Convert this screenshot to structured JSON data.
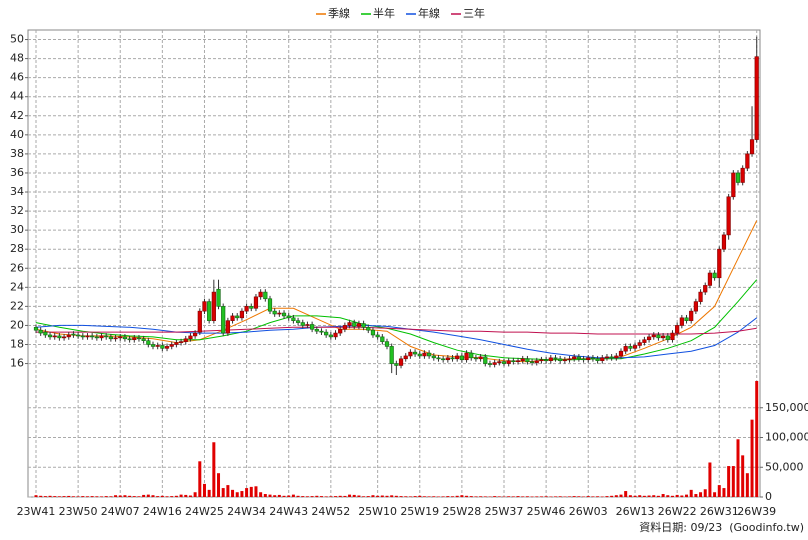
{
  "chart_data": {
    "type": "candlestick",
    "legend_position": "top",
    "grid": true,
    "up_color": "#d80000",
    "down_color": "#22c022",
    "volume_color": "#e00000",
    "categories": [
      "23W41",
      null,
      null,
      null,
      null,
      null,
      null,
      null,
      null,
      "23W50",
      null,
      null,
      null,
      null,
      null,
      null,
      null,
      null,
      "24W07",
      null,
      null,
      null,
      null,
      null,
      null,
      null,
      null,
      "24W16",
      null,
      null,
      null,
      null,
      null,
      null,
      null,
      null,
      "24W25",
      null,
      null,
      null,
      null,
      null,
      null,
      null,
      null,
      "24W34",
      null,
      null,
      null,
      null,
      null,
      null,
      null,
      null,
      "24W43",
      null,
      null,
      null,
      null,
      null,
      null,
      null,
      null,
      "24W52",
      null,
      null,
      null,
      null,
      null,
      null,
      null,
      null,
      null,
      "25W10",
      null,
      null,
      null,
      null,
      null,
      null,
      null,
      null,
      "25W19",
      null,
      null,
      null,
      null,
      null,
      null,
      null,
      null,
      "25W28",
      null,
      null,
      null,
      null,
      null,
      null,
      null,
      null,
      "25W37",
      null,
      null,
      null,
      null,
      null,
      null,
      null,
      null,
      "25W46",
      null,
      null,
      null,
      null,
      null,
      null,
      null,
      null,
      "26W03",
      null,
      null,
      null,
      null,
      null,
      null,
      null,
      null,
      null,
      "26W13",
      null,
      null,
      null,
      null,
      null,
      null,
      null,
      null,
      "26W22",
      null,
      null,
      null,
      null,
      null,
      null,
      null,
      null,
      "26W31",
      null,
      null,
      null,
      null,
      null,
      null,
      null,
      "26W39"
    ],
    "open": [
      19.8,
      19.5,
      19.3,
      19.0,
      18.8,
      18.9,
      18.7,
      18.8,
      19.1,
      19.0,
      18.9,
      18.8,
      18.9,
      18.8,
      18.7,
      18.9,
      18.8,
      18.6,
      18.7,
      18.8,
      18.6,
      18.5,
      18.7,
      18.6,
      18.4,
      18.0,
      17.8,
      17.9,
      17.6,
      17.8,
      18.0,
      18.2,
      18.3,
      18.6,
      18.9,
      19.3,
      21.5,
      22.5,
      20.5,
      23.8,
      22.0,
      19.2,
      20.5,
      21.0,
      20.8,
      21.5,
      22.0,
      21.8,
      23.0,
      23.5,
      22.8,
      21.5,
      21.2,
      21.3,
      21.0,
      20.8,
      20.5,
      20.3,
      20.0,
      20.1,
      19.6,
      19.4,
      19.3,
      19.0,
      18.8,
      19.2,
      19.6,
      20.0,
      20.3,
      19.9,
      20.2,
      19.8,
      19.5,
      19.0,
      18.8,
      18.3,
      17.8,
      16.0,
      15.8,
      16.5,
      16.8,
      17.2,
      17.0,
      16.8,
      17.1,
      16.8,
      16.6,
      16.5,
      16.4,
      16.6,
      16.5,
      16.8,
      16.4,
      17.1,
      16.6,
      16.5,
      16.7,
      16.0,
      15.9,
      16.1,
      16.2,
      16.0,
      16.3,
      16.2,
      16.3,
      16.5,
      16.2,
      16.1,
      16.3,
      16.4,
      16.3,
      16.6,
      16.5,
      16.3,
      16.4,
      16.5,
      16.7,
      16.5,
      16.4,
      16.6,
      16.5,
      16.3,
      16.6,
      16.7,
      16.6,
      16.8,
      17.3,
      17.8,
      17.6,
      17.9,
      18.2,
      18.5,
      18.8,
      19.0,
      18.7,
      18.9,
      18.5,
      19.2,
      20.0,
      20.8,
      20.5,
      21.5,
      22.5,
      23.5,
      24.2,
      25.5,
      25.0,
      28.0,
      29.5,
      33.5,
      36.0,
      35.0,
      36.5,
      38.0,
      39.5
    ],
    "high": [
      20.1,
      19.8,
      19.6,
      19.3,
      19.2,
      19.2,
      19.1,
      19.3,
      19.4,
      19.3,
      19.2,
      19.2,
      19.2,
      19.1,
      19.2,
      19.2,
      19.1,
      19.0,
      19.1,
      19.1,
      18.9,
      19.0,
      19.0,
      18.9,
      18.7,
      18.3,
      18.2,
      18.2,
      18.1,
      18.3,
      18.5,
      18.6,
      18.9,
      19.2,
      19.5,
      21.8,
      22.8,
      22.8,
      24.8,
      24.8,
      22.3,
      20.8,
      21.3,
      21.3,
      21.8,
      22.3,
      22.3,
      23.3,
      23.8,
      23.8,
      23.1,
      21.8,
      21.6,
      21.6,
      21.3,
      21.1,
      20.8,
      20.6,
      20.4,
      20.4,
      19.9,
      19.7,
      19.6,
      19.3,
      19.5,
      19.9,
      20.3,
      20.6,
      20.6,
      20.5,
      20.5,
      20.1,
      19.8,
      19.3,
      19.1,
      18.6,
      18.1,
      16.3,
      16.8,
      17.1,
      17.5,
      17.5,
      17.3,
      17.4,
      17.4,
      17.1,
      16.9,
      16.8,
      16.9,
      16.9,
      17.1,
      17.1,
      17.4,
      17.4,
      16.9,
      17.0,
      17.0,
      16.3,
      16.4,
      16.5,
      16.5,
      16.6,
      16.6,
      16.6,
      16.8,
      16.8,
      16.5,
      16.6,
      16.7,
      16.7,
      16.9,
      16.9,
      16.8,
      16.7,
      16.8,
      17.0,
      17.0,
      16.8,
      16.9,
      16.9,
      16.8,
      16.9,
      17.0,
      17.0,
      17.1,
      17.6,
      18.1,
      18.1,
      18.2,
      18.5,
      18.8,
      19.1,
      19.3,
      19.3,
      19.2,
      19.2,
      19.5,
      20.3,
      21.1,
      21.1,
      21.8,
      22.8,
      23.8,
      24.5,
      25.8,
      25.8,
      28.3,
      29.8,
      33.8,
      36.3,
      36.3,
      36.8,
      38.3,
      43.0,
      50.3
    ],
    "low": [
      19.2,
      18.9,
      18.7,
      18.5,
      18.5,
      18.4,
      18.4,
      18.5,
      18.7,
      18.6,
      18.5,
      18.5,
      18.5,
      18.4,
      18.4,
      18.5,
      18.3,
      18.3,
      18.4,
      18.3,
      18.2,
      18.2,
      18.3,
      18.1,
      17.7,
      17.5,
      17.5,
      17.3,
      17.3,
      17.5,
      17.7,
      17.9,
      18.0,
      18.3,
      18.6,
      19.0,
      21.2,
      20.2,
      20.2,
      21.7,
      18.9,
      18.9,
      20.2,
      20.5,
      20.5,
      21.2,
      21.5,
      21.5,
      22.7,
      22.5,
      21.2,
      20.9,
      20.9,
      20.7,
      20.5,
      20.2,
      20.0,
      19.7,
      19.7,
      19.3,
      19.1,
      19.0,
      18.7,
      18.5,
      18.5,
      18.9,
      19.3,
      19.7,
      19.6,
      19.6,
      19.5,
      19.2,
      18.7,
      18.5,
      18.0,
      17.5,
      15.0,
      14.8,
      15.5,
      16.2,
      16.5,
      16.7,
      16.5,
      16.5,
      16.5,
      16.3,
      16.2,
      16.1,
      16.1,
      16.2,
      16.2,
      16.1,
      16.1,
      16.3,
      16.2,
      16.2,
      15.7,
      15.6,
      15.6,
      15.8,
      15.7,
      15.7,
      15.9,
      15.9,
      16.0,
      15.9,
      15.8,
      15.8,
      16.0,
      16.0,
      16.0,
      16.2,
      16.0,
      16.0,
      16.1,
      16.2,
      16.2,
      16.1,
      16.1,
      16.2,
      16.0,
      16.0,
      16.3,
      16.3,
      16.3,
      16.5,
      17.0,
      17.3,
      17.3,
      17.6,
      17.9,
      18.2,
      18.5,
      18.4,
      18.4,
      18.2,
      18.2,
      18.9,
      19.7,
      20.2,
      20.2,
      21.2,
      22.2,
      23.2,
      23.9,
      24.7,
      24.0,
      27.7,
      29.0,
      33.2,
      34.7,
      34.7,
      36.2,
      37.7,
      39.2
    ],
    "close": [
      19.5,
      19.2,
      19.0,
      18.8,
      18.9,
      18.7,
      18.8,
      19.0,
      19.0,
      18.9,
      18.8,
      18.9,
      18.8,
      18.7,
      18.9,
      18.8,
      18.6,
      18.7,
      18.8,
      18.6,
      18.5,
      18.7,
      18.6,
      18.4,
      18.0,
      17.8,
      17.9,
      17.6,
      17.8,
      18.0,
      18.2,
      18.3,
      18.6,
      18.9,
      19.2,
      21.5,
      22.5,
      20.5,
      23.5,
      22.0,
      19.2,
      20.5,
      21.0,
      20.8,
      21.5,
      22.0,
      21.8,
      23.0,
      23.5,
      22.8,
      21.5,
      21.2,
      21.3,
      21.0,
      20.8,
      20.5,
      20.3,
      20.0,
      20.1,
      19.6,
      19.4,
      19.3,
      19.0,
      18.8,
      19.2,
      19.6,
      20.0,
      20.3,
      19.9,
      20.2,
      19.8,
      19.5,
      19.0,
      18.8,
      18.3,
      17.8,
      16.0,
      15.8,
      16.5,
      16.8,
      17.2,
      17.0,
      16.8,
      17.1,
      16.8,
      16.6,
      16.5,
      16.4,
      16.6,
      16.5,
      16.8,
      16.4,
      17.1,
      16.6,
      16.5,
      16.7,
      16.0,
      15.9,
      16.1,
      16.2,
      16.0,
      16.3,
      16.2,
      16.3,
      16.5,
      16.2,
      16.1,
      16.3,
      16.4,
      16.3,
      16.6,
      16.5,
      16.3,
      16.4,
      16.5,
      16.7,
      16.5,
      16.4,
      16.6,
      16.5,
      16.3,
      16.6,
      16.7,
      16.6,
      16.8,
      17.3,
      17.8,
      17.6,
      17.9,
      18.2,
      18.5,
      18.8,
      19.0,
      18.7,
      18.9,
      18.5,
      19.2,
      20.0,
      20.8,
      20.5,
      21.5,
      22.5,
      23.5,
      24.2,
      25.5,
      25.0,
      28.0,
      29.5,
      33.5,
      36.0,
      35.0,
      36.5,
      38.0,
      39.5,
      48.2
    ],
    "volume": [
      3000,
      2000,
      1500,
      2000,
      1500,
      1200,
      1500,
      1800,
      1200,
      1000,
      1500,
      1200,
      1500,
      1200,
      1000,
      1500,
      1200,
      3000,
      2500,
      3000,
      2000,
      1500,
      1200,
      3500,
      4000,
      3000,
      1500,
      2000,
      1200,
      1500,
      2000,
      4000,
      3500,
      2500,
      8000,
      60000,
      22000,
      12000,
      92000,
      40000,
      15000,
      20000,
      12000,
      8000,
      10000,
      15000,
      17000,
      18000,
      8000,
      5000,
      4000,
      3000,
      3500,
      2000,
      2500,
      4000,
      2000,
      1500,
      1200,
      1500,
      2000,
      1500,
      1000,
      1200,
      1500,
      2000,
      1800,
      4000,
      3500,
      2500,
      1200,
      1500,
      3000,
      2000,
      2500,
      2000,
      2800,
      2000,
      1500,
      1200,
      1000,
      1500,
      2000,
      1200,
      1000,
      1200,
      800,
      1000,
      1500,
      1200,
      2000,
      3000,
      2000,
      1500,
      1000,
      1200,
      1000,
      800,
      1500,
      1000,
      800,
      1200,
      1000,
      1500,
      1000,
      1200,
      800,
      1000,
      1000,
      1200,
      800,
      1000,
      1200,
      800,
      1000,
      1500,
      1200,
      800,
      1500,
      1000,
      1200,
      800,
      1500,
      2000,
      3000,
      4000,
      10000,
      3000,
      2000,
      3000,
      2000,
      2500,
      3000,
      2000,
      5000,
      3000,
      2000,
      3500,
      2500,
      4000,
      12000,
      5000,
      8000,
      13000,
      58000,
      8000,
      20000,
      15000,
      52000,
      52000,
      97000,
      70000,
      40000,
      130000,
      195000
    ],
    "series": [
      {
        "name": "季線",
        "color": "#ee7700",
        "x": [
          0,
          5,
          10,
          15,
          20,
          25,
          30,
          35,
          40,
          45,
          50,
          55,
          60,
          65,
          70,
          75,
          80,
          85,
          90,
          95,
          100,
          105,
          110,
          115,
          120,
          125,
          130,
          135,
          140,
          145,
          150,
          154
        ],
        "values": [
          19.6,
          19.1,
          18.9,
          18.9,
          18.8,
          18.6,
          18.2,
          18.5,
          19.5,
          20.6,
          21.8,
          21.8,
          20.7,
          19.6,
          19.6,
          19.4,
          17.8,
          16.9,
          16.7,
          16.6,
          16.3,
          16.2,
          16.4,
          16.5,
          16.5,
          16.7,
          17.6,
          18.6,
          19.8,
          22.0,
          27.0,
          31.0
        ]
      },
      {
        "name": "半年",
        "color": "#00c000",
        "x": [
          0,
          5,
          10,
          15,
          20,
          25,
          30,
          35,
          40,
          45,
          50,
          55,
          60,
          65,
          70,
          75,
          80,
          85,
          90,
          95,
          100,
          105,
          110,
          115,
          120,
          125,
          130,
          135,
          140,
          145,
          150,
          154
        ],
        "values": [
          20.3,
          19.8,
          19.4,
          19.1,
          18.9,
          18.8,
          18.5,
          18.5,
          18.9,
          19.4,
          20.3,
          21.0,
          21.0,
          20.8,
          20.1,
          19.7,
          19.1,
          18.2,
          17.4,
          16.9,
          16.6,
          16.5,
          16.4,
          16.4,
          16.5,
          16.5,
          17.0,
          17.6,
          18.4,
          19.8,
          22.5,
          24.8
        ]
      },
      {
        "name": "年線",
        "color": "#1050e0",
        "x": [
          0,
          5,
          10,
          15,
          20,
          25,
          30,
          35,
          40,
          45,
          50,
          55,
          60,
          65,
          70,
          75,
          80,
          85,
          90,
          95,
          100,
          105,
          110,
          115,
          120,
          125,
          130,
          135,
          140,
          145,
          150,
          154
        ],
        "values": [
          19.8,
          20.0,
          20.0,
          19.9,
          19.8,
          19.6,
          19.3,
          19.2,
          19.2,
          19.3,
          19.5,
          19.6,
          19.8,
          19.9,
          20.0,
          19.9,
          19.6,
          19.3,
          18.9,
          18.5,
          18.0,
          17.5,
          17.1,
          16.8,
          16.6,
          16.6,
          16.7,
          17.0,
          17.3,
          17.9,
          19.3,
          20.8
        ]
      },
      {
        "name": "三年",
        "color": "#c0104f",
        "x": [
          0,
          5,
          10,
          15,
          20,
          25,
          30,
          35,
          40,
          45,
          50,
          55,
          60,
          65,
          70,
          75,
          80,
          85,
          90,
          95,
          100,
          105,
          110,
          115,
          120,
          125,
          130,
          135,
          140,
          145,
          150,
          154
        ],
        "values": [
          19.3,
          19.3,
          19.3,
          19.3,
          19.3,
          19.3,
          19.3,
          19.4,
          19.5,
          19.6,
          19.7,
          19.8,
          19.8,
          19.8,
          19.8,
          19.7,
          19.6,
          19.5,
          19.4,
          19.4,
          19.3,
          19.3,
          19.2,
          19.2,
          19.1,
          19.1,
          19.1,
          19.1,
          19.1,
          19.2,
          19.4,
          19.7
        ]
      }
    ],
    "ylim": [
      14.8,
      51.0
    ],
    "yticks": [
      16,
      18,
      20,
      22,
      24,
      26,
      28,
      30,
      32,
      34,
      36,
      38,
      40,
      42,
      44,
      46,
      48,
      50
    ],
    "y2lim": [
      0,
      200000
    ],
    "y2ticks": [
      0,
      {
        "value": 50000,
        "label": "50,000"
      },
      {
        "value": 100000,
        "label": "100,000"
      },
      {
        "value": 150000,
        "label": "150,000"
      }
    ],
    "footer": "資料日期: 09/23  (Goodinfo.tw)"
  }
}
